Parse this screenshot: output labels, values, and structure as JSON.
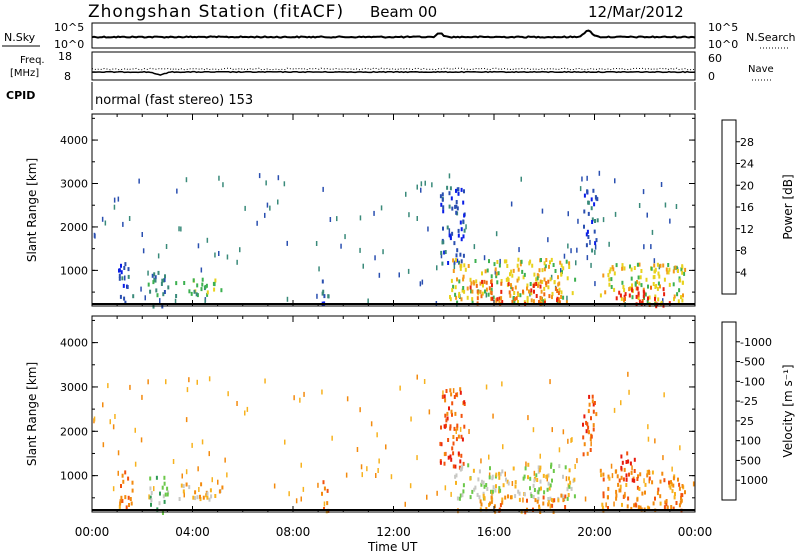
{
  "header": {
    "title": "Zhongshan Station (fitACF)",
    "beam": "Beam 00",
    "date": "12/Mar/2012"
  },
  "top_panels": {
    "nsky": {
      "label": "N.Sky",
      "tick_top": "10^5",
      "tick_bottom": "10^0",
      "right_label": "N.Search",
      "right_tick_top": "10^5",
      "right_tick_bottom": "10^0"
    },
    "freq": {
      "label_line1": "Freq.",
      "label_line2": "[MHz]",
      "tick_top": "18",
      "tick_bottom": "8",
      "right_label": "Nave",
      "right_tick_top": "60",
      "right_tick_bottom": "0"
    },
    "cpid": {
      "label": "CPID",
      "text": "normal (fast stereo) 153"
    }
  },
  "chart_data": [
    {
      "type": "heatmap",
      "name": "power",
      "ylabel": "Slant Range [km]",
      "yticks": [
        1000,
        2000,
        3000,
        4000
      ],
      "ylim": [
        180,
        4600
      ],
      "xlim": [
        0,
        24
      ],
      "xticks": [
        "00:00",
        "04:00",
        "08:00",
        "12:00",
        "16:00",
        "20:00",
        "00:00"
      ],
      "colorbar": {
        "label": "Power [dB]",
        "ticks": [
          "4",
          "8",
          "12",
          "16",
          "20",
          "24",
          "28"
        ],
        "colors": [
          "#0a1ee6",
          "#2a4fb0",
          "#3a8a7a",
          "#3cb050",
          "#e8d21e",
          "#f39a1a",
          "#f06a10",
          "#e8200c"
        ]
      },
      "clusters": [
        {
          "t0": 1.0,
          "t1": 1.6,
          "r0": 300,
          "r1": 1200,
          "level": 1
        },
        {
          "t0": 2.2,
          "t1": 3.0,
          "r0": 200,
          "r1": 1000,
          "level": 2
        },
        {
          "t0": 3.3,
          "t1": 5.2,
          "r0": 450,
          "r1": 850,
          "level": 3
        },
        {
          "t0": 9.1,
          "t1": 9.4,
          "r0": 200,
          "r1": 1000,
          "level": 1
        },
        {
          "t0": 13.8,
          "t1": 14.8,
          "r0": 1200,
          "r1": 3000,
          "level": 1
        },
        {
          "t0": 14.2,
          "t1": 19.2,
          "r0": 300,
          "r1": 1300,
          "level": 4
        },
        {
          "t0": 15.0,
          "t1": 18.6,
          "r0": 250,
          "r1": 800,
          "level": 6
        },
        {
          "t0": 19.5,
          "t1": 20.1,
          "r0": 1500,
          "r1": 2900,
          "level": 1
        },
        {
          "t0": 20.2,
          "t1": 23.6,
          "r0": 250,
          "r1": 1200,
          "level": 4
        },
        {
          "t0": 20.8,
          "t1": 23.0,
          "r0": 220,
          "r1": 650,
          "level": 7
        }
      ]
    },
    {
      "type": "heatmap",
      "name": "velocity",
      "ylabel": "Slant Range [km]",
      "yticks": [
        1000,
        2000,
        3000,
        4000
      ],
      "ylim": [
        180,
        4600
      ],
      "xlim": [
        0,
        24
      ],
      "xticks": [
        "00:00",
        "04:00",
        "08:00",
        "12:00",
        "16:00",
        "20:00",
        "00:00"
      ],
      "xlabel": "Time UT",
      "colorbar": {
        "label": "Velocity [m s⁻¹]",
        "ticks": [
          "1000",
          "500",
          "100",
          "25",
          "-25",
          "-100",
          "-500",
          "-1000"
        ],
        "colors": [
          "#1e3ad0",
          "#2e7cb0",
          "#2f9a55",
          "#6cc84a",
          "#c8c8c4",
          "#f7b21e",
          "#f38a0e",
          "#f2520c",
          "#e81a0c"
        ]
      },
      "clusters": [
        {
          "t0": 1.0,
          "t1": 1.6,
          "r0": 300,
          "r1": 1200,
          "level": 6
        },
        {
          "t0": 2.2,
          "t1": 3.0,
          "r0": 200,
          "r1": 1000,
          "level": 3
        },
        {
          "t0": 3.3,
          "t1": 5.2,
          "r0": 450,
          "r1": 850,
          "level": 5
        },
        {
          "t0": 9.1,
          "t1": 9.4,
          "r0": 200,
          "r1": 1000,
          "level": 6
        },
        {
          "t0": 13.8,
          "t1": 14.8,
          "r0": 1200,
          "r1": 3000,
          "level": 7
        },
        {
          "t0": 14.4,
          "t1": 19.2,
          "r0": 500,
          "r1": 1300,
          "level": 4
        },
        {
          "t0": 15.4,
          "t1": 18.8,
          "r0": 200,
          "r1": 600,
          "level": 6
        },
        {
          "t0": 19.5,
          "t1": 20.1,
          "r0": 1500,
          "r1": 2900,
          "level": 7
        },
        {
          "t0": 20.2,
          "t1": 23.6,
          "r0": 250,
          "r1": 1200,
          "level": 6
        },
        {
          "t0": 21.0,
          "t1": 21.6,
          "r0": 900,
          "r1": 1600,
          "level": 8
        }
      ]
    }
  ]
}
